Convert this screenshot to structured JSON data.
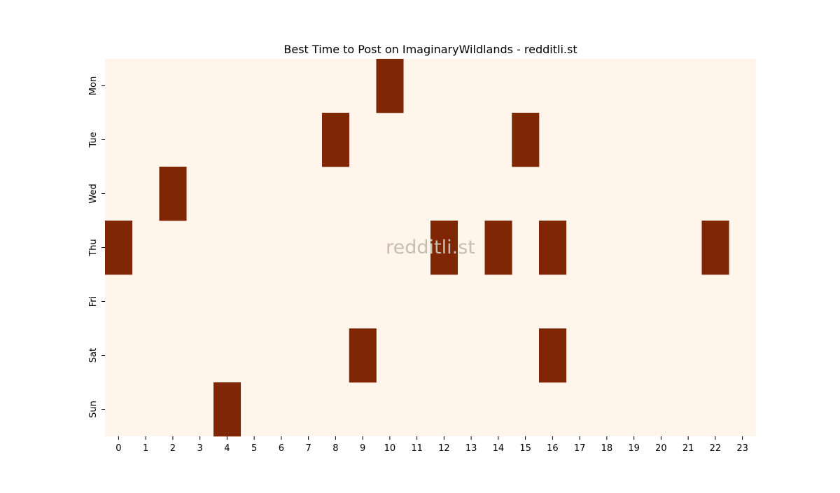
{
  "chart_data": {
    "type": "heatmap",
    "title": "Best Time to Post on ImaginaryWildlands - redditli.st",
    "watermark": "redditli.st",
    "xlabel": "",
    "ylabel": "",
    "x_categories": [
      "0",
      "1",
      "2",
      "3",
      "4",
      "5",
      "6",
      "7",
      "8",
      "9",
      "10",
      "11",
      "12",
      "13",
      "14",
      "15",
      "16",
      "17",
      "18",
      "19",
      "20",
      "21",
      "22",
      "23"
    ],
    "y_categories": [
      "Mon",
      "Tue",
      "Wed",
      "Thu",
      "Fri",
      "Sat",
      "Sun"
    ],
    "grid": false,
    "legend": "none",
    "colors": {
      "low": "#fff5eb",
      "high": "#7f2704",
      "watermark": "#c9bcb1"
    },
    "values": [
      [
        0,
        0,
        0,
        0,
        0,
        0,
        0,
        0,
        0,
        0,
        1,
        0,
        0,
        0,
        0,
        0,
        0,
        0,
        0,
        0,
        0,
        0,
        0,
        0
      ],
      [
        0,
        0,
        0,
        0,
        0,
        0,
        0,
        0,
        1,
        0,
        0,
        0,
        0,
        0,
        0,
        1,
        0,
        0,
        0,
        0,
        0,
        0,
        0,
        0
      ],
      [
        0,
        0,
        1,
        0,
        0,
        0,
        0,
        0,
        0,
        0,
        0,
        0,
        0,
        0,
        0,
        0,
        0,
        0,
        0,
        0,
        0,
        0,
        0,
        0
      ],
      [
        1,
        0,
        0,
        0,
        0,
        0,
        0,
        0,
        0,
        0,
        0,
        0,
        1,
        0,
        1,
        0,
        1,
        0,
        0,
        0,
        0,
        0,
        1,
        0
      ],
      [
        0,
        0,
        0,
        0,
        0,
        0,
        0,
        0,
        0,
        0,
        0,
        0,
        0,
        0,
        0,
        0,
        0,
        0,
        0,
        0,
        0,
        0,
        0,
        0
      ],
      [
        0,
        0,
        0,
        0,
        0,
        0,
        0,
        0,
        0,
        1,
        0,
        0,
        0,
        0,
        0,
        0,
        1,
        0,
        0,
        0,
        0,
        0,
        0,
        0
      ],
      [
        0,
        0,
        0,
        0,
        1,
        0,
        0,
        0,
        0,
        0,
        0,
        0,
        0,
        0,
        0,
        0,
        0,
        0,
        0,
        0,
        0,
        0,
        0,
        0
      ]
    ]
  }
}
